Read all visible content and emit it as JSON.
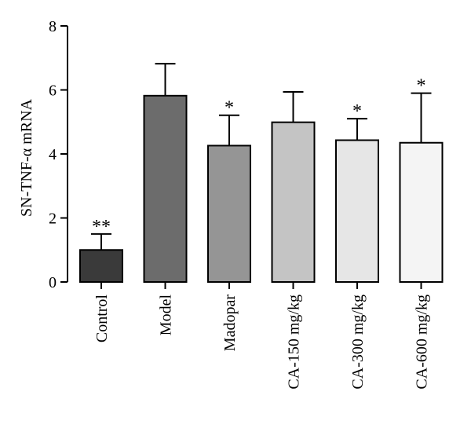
{
  "chart_data": {
    "type": "bar",
    "title": "",
    "xlabel": "",
    "ylabel": "SN-TNF-α mRNA",
    "ylim": [
      0,
      8
    ],
    "yticks": [
      0,
      2,
      4,
      6,
      8
    ],
    "grid": false,
    "categories": [
      "Control",
      "Model",
      "Madopar",
      "CA-150 mg/kg",
      "CA-300 mg/kg",
      "CA-600 mg/kg"
    ],
    "values": [
      1.0,
      5.82,
      4.26,
      4.99,
      4.43,
      4.35
    ],
    "errors": [
      0.5,
      1.0,
      0.95,
      0.95,
      0.67,
      1.55
    ],
    "significance": [
      "**",
      "",
      "*",
      "",
      "*",
      "*"
    ],
    "bar_colors": [
      "#3a3a3a",
      "#6c6c6c",
      "#959595",
      "#c4c4c4",
      "#e6e6e6",
      "#f4f4f4"
    ]
  }
}
